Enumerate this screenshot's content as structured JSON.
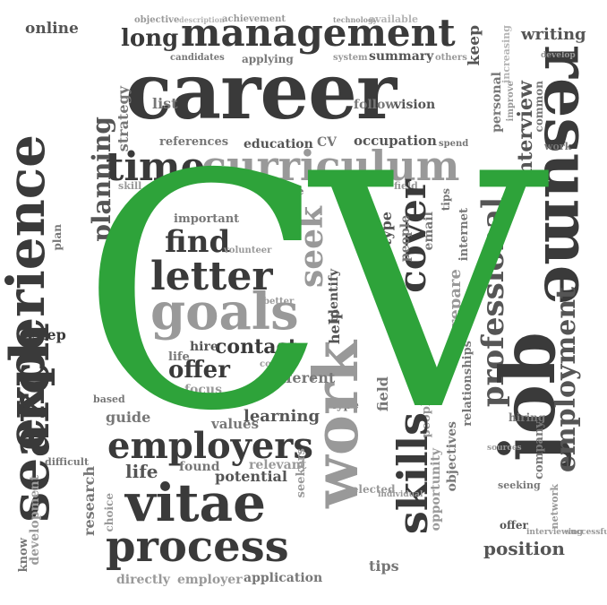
{
  "cloud": {
    "hero": "CV",
    "career": "career",
    "management": "management",
    "long": "long",
    "online": "online",
    "writing": "writing",
    "keep": "keep",
    "time": "time",
    "curriculum": "curriculum",
    "experience": "experience",
    "planning": "planning",
    "resume": "resume",
    "job": "job",
    "search": "search",
    "work": "work",
    "skills": "skills",
    "employment": "employment",
    "find": "find",
    "letter": "letter",
    "goals": "goals",
    "contact": "contact",
    "offer": "offer",
    "seek": "seek",
    "cover": "cover",
    "employers": "employers",
    "vitae": "vitae",
    "process": "process",
    "position": "position",
    "internet": "internet",
    "professional": "professional",
    "interview": "interview",
    "education": "education",
    "occupation": "occupation",
    "references": "references",
    "vision": "vision",
    "follow": "follow",
    "list": "list",
    "strategy": "strategy",
    "learning": "learning",
    "different": "different",
    "potential": "potential",
    "research": "research",
    "tips": "tips",
    "opportunity": "opportunity",
    "step": "step",
    "guide": "guide",
    "values": "values",
    "found": "found",
    "life": "life",
    "hire": "hire",
    "focus": "focus",
    "application": "application",
    "directly": "directly",
    "employer": "employer",
    "relevant": "relevant",
    "hiring": "hiring",
    "seeking": "seeking",
    "selected": "selected",
    "objectives": "objectives",
    "relationships": "relationships",
    "personal": "personal",
    "common": "common",
    "improve": "improve",
    "summary": "summary",
    "applying": "applying",
    "objective": "objective",
    "description": "description",
    "achievement": "achievement",
    "technology": "technology",
    "available": "available",
    "others": "others",
    "candidates": "candidates",
    "system": "system",
    "field": "field",
    "type": "type",
    "people": "people",
    "email": "email",
    "prepare": "prepare",
    "identify": "identify",
    "help": "help",
    "spend": "spend",
    "become": "become",
    "skill": "skill",
    "plan": "plan",
    "based": "based",
    "difficult": "difficult",
    "choice": "choice",
    "development": "development",
    "know": "know",
    "seekers": "seekers",
    "important": "important",
    "volunteer": "volunteer",
    "better": "better",
    "courses": "courses",
    "network": "network",
    "company": "company",
    "sources": "sources",
    "successful": "successful",
    "interviewing": "interviewing",
    "work_small": "work",
    "increasing": "increasing",
    "individual": "individual",
    "develop": "develop"
  }
}
